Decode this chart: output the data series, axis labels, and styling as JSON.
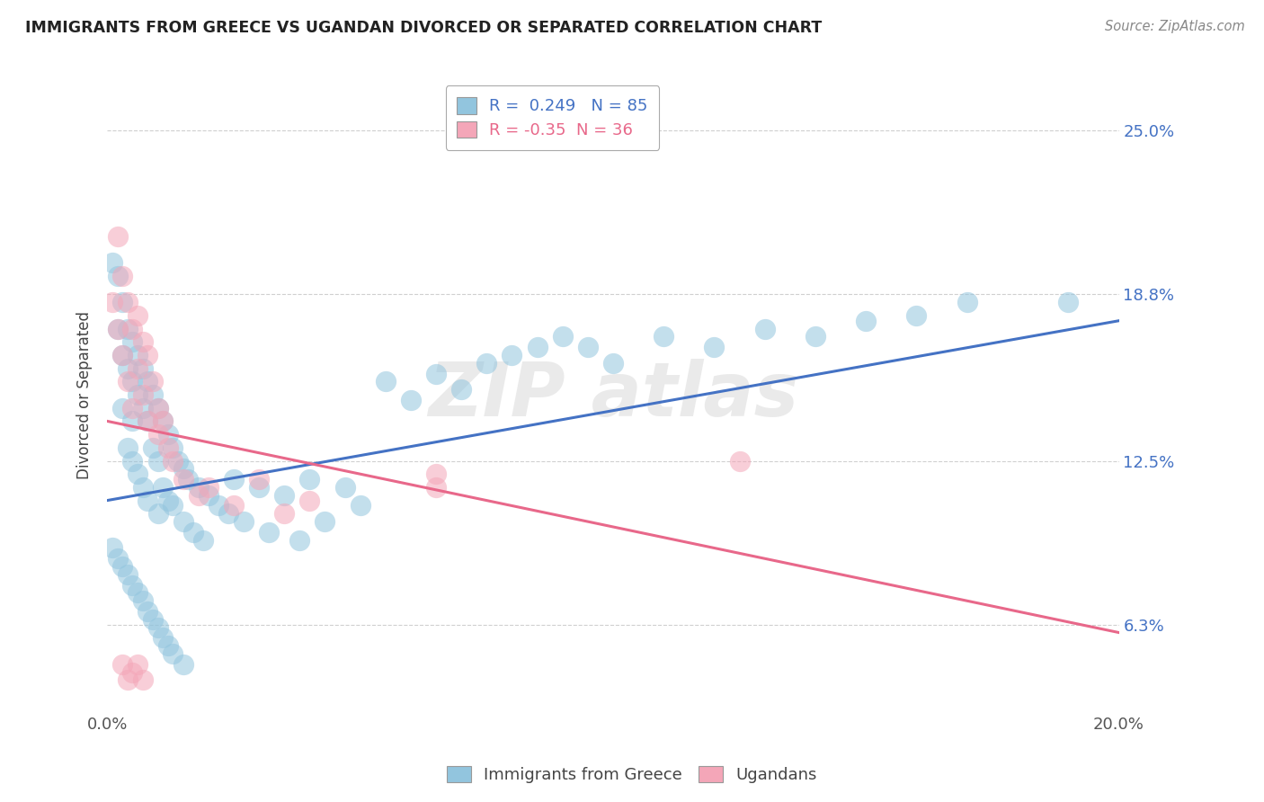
{
  "title": "IMMIGRANTS FROM GREECE VS UGANDAN DIVORCED OR SEPARATED CORRELATION CHART",
  "source": "Source: ZipAtlas.com",
  "ylabel": "Divorced or Separated",
  "legend_blue_label": "Immigrants from Greece",
  "legend_pink_label": "Ugandans",
  "R_blue": 0.249,
  "N_blue": 85,
  "R_pink": -0.35,
  "N_pink": 36,
  "xmin": 0.0,
  "xmax": 0.2,
  "ymin": 0.03,
  "ymax": 0.27,
  "yticks": [
    0.063,
    0.125,
    0.188,
    0.25
  ],
  "ytick_labels": [
    "6.3%",
    "12.5%",
    "18.8%",
    "25.0%"
  ],
  "xticks": [
    0.0,
    0.2
  ],
  "xtick_labels": [
    "0.0%",
    "20.0%"
  ],
  "color_blue": "#92c5de",
  "color_pink": "#f4a6b8",
  "line_blue": "#4472c4",
  "line_pink": "#e8688a",
  "background_color": "#ffffff",
  "grid_color": "#d0d0d0",
  "blue_line_y0": 0.11,
  "blue_line_y1": 0.178,
  "pink_line_y0": 0.14,
  "pink_line_y1": 0.06,
  "blue_scatter_x": [
    0.001,
    0.002,
    0.002,
    0.003,
    0.003,
    0.003,
    0.004,
    0.004,
    0.004,
    0.005,
    0.005,
    0.005,
    0.005,
    0.006,
    0.006,
    0.006,
    0.007,
    0.007,
    0.007,
    0.008,
    0.008,
    0.008,
    0.009,
    0.009,
    0.01,
    0.01,
    0.01,
    0.011,
    0.011,
    0.012,
    0.012,
    0.013,
    0.013,
    0.014,
    0.015,
    0.015,
    0.016,
    0.017,
    0.018,
    0.019,
    0.02,
    0.022,
    0.024,
    0.025,
    0.027,
    0.03,
    0.032,
    0.035,
    0.038,
    0.04,
    0.043,
    0.047,
    0.05,
    0.055,
    0.06,
    0.065,
    0.07,
    0.075,
    0.08,
    0.085,
    0.09,
    0.095,
    0.1,
    0.11,
    0.12,
    0.13,
    0.14,
    0.15,
    0.16,
    0.17,
    0.001,
    0.002,
    0.003,
    0.004,
    0.005,
    0.006,
    0.007,
    0.008,
    0.009,
    0.01,
    0.011,
    0.012,
    0.013,
    0.015,
    0.19
  ],
  "blue_scatter_y": [
    0.2,
    0.195,
    0.175,
    0.185,
    0.165,
    0.145,
    0.175,
    0.16,
    0.13,
    0.17,
    0.155,
    0.14,
    0.125,
    0.165,
    0.15,
    0.12,
    0.16,
    0.145,
    0.115,
    0.155,
    0.14,
    0.11,
    0.15,
    0.13,
    0.145,
    0.125,
    0.105,
    0.14,
    0.115,
    0.135,
    0.11,
    0.13,
    0.108,
    0.125,
    0.122,
    0.102,
    0.118,
    0.098,
    0.115,
    0.095,
    0.112,
    0.108,
    0.105,
    0.118,
    0.102,
    0.115,
    0.098,
    0.112,
    0.095,
    0.118,
    0.102,
    0.115,
    0.108,
    0.155,
    0.148,
    0.158,
    0.152,
    0.162,
    0.165,
    0.168,
    0.172,
    0.168,
    0.162,
    0.172,
    0.168,
    0.175,
    0.172,
    0.178,
    0.18,
    0.185,
    0.092,
    0.088,
    0.085,
    0.082,
    0.078,
    0.075,
    0.072,
    0.068,
    0.065,
    0.062,
    0.058,
    0.055,
    0.052,
    0.048,
    0.185
  ],
  "pink_scatter_x": [
    0.001,
    0.002,
    0.002,
    0.003,
    0.003,
    0.004,
    0.004,
    0.005,
    0.005,
    0.006,
    0.006,
    0.007,
    0.007,
    0.008,
    0.008,
    0.009,
    0.01,
    0.01,
    0.011,
    0.012,
    0.013,
    0.015,
    0.018,
    0.02,
    0.025,
    0.03,
    0.035,
    0.04,
    0.065,
    0.065,
    0.125,
    0.003,
    0.004,
    0.005,
    0.006,
    0.007
  ],
  "pink_scatter_y": [
    0.185,
    0.21,
    0.175,
    0.195,
    0.165,
    0.185,
    0.155,
    0.175,
    0.145,
    0.18,
    0.16,
    0.17,
    0.15,
    0.165,
    0.14,
    0.155,
    0.145,
    0.135,
    0.14,
    0.13,
    0.125,
    0.118,
    0.112,
    0.115,
    0.108,
    0.118,
    0.105,
    0.11,
    0.12,
    0.115,
    0.125,
    0.048,
    0.042,
    0.045,
    0.048,
    0.042
  ]
}
